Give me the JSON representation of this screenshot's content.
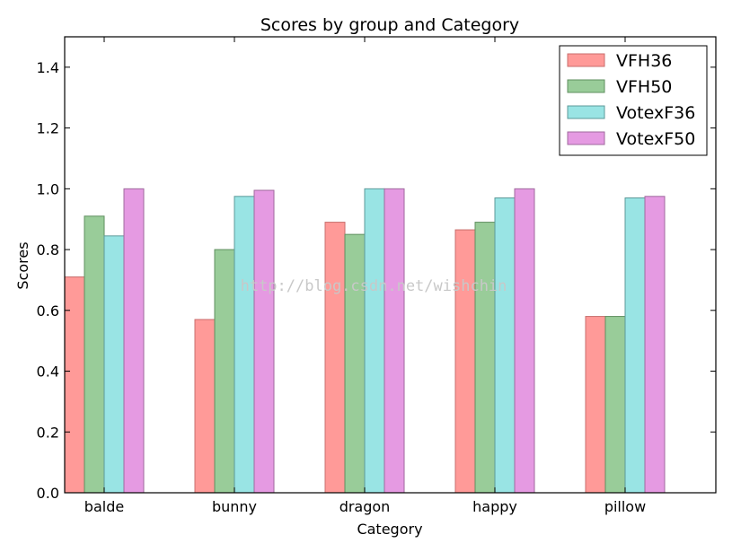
{
  "chart_data": {
    "type": "bar",
    "title": "Scores by group and Category",
    "xlabel": "Category",
    "ylabel": "Scores",
    "ylim": [
      0,
      1.5
    ],
    "yticks": [
      0.0,
      0.2,
      0.4,
      0.6,
      0.8,
      1.0,
      1.2,
      1.4
    ],
    "ytick_labels": [
      "0.0",
      "0.2",
      "0.4",
      "0.6",
      "0.8",
      "1.0",
      "1.2",
      "1.4"
    ],
    "categories": [
      "balde",
      "bunny",
      "dragon",
      "happy",
      "pillow"
    ],
    "series": [
      {
        "name": "VFH36",
        "color": "#ff9a98",
        "edge": "#c86e6c",
        "values": [
          0.71,
          0.57,
          0.89,
          0.865,
          0.58
        ]
      },
      {
        "name": "VFH50",
        "color": "#99cc99",
        "edge": "#5f8f5f",
        "values": [
          0.91,
          0.8,
          0.85,
          0.89,
          0.58
        ]
      },
      {
        "name": "VotexF36",
        "color": "#99e4e4",
        "edge": "#5c9a9a",
        "values": [
          0.845,
          0.975,
          1.0,
          0.97,
          0.97
        ]
      },
      {
        "name": "VotexF50",
        "color": "#e59ae2",
        "edge": "#a06a9e",
        "values": [
          1.0,
          0.995,
          1.0,
          1.0,
          0.975
        ]
      }
    ],
    "legend": {
      "placement": "top-right"
    },
    "grid": false
  },
  "watermark": "http://blog.csdn.net/wishchin"
}
